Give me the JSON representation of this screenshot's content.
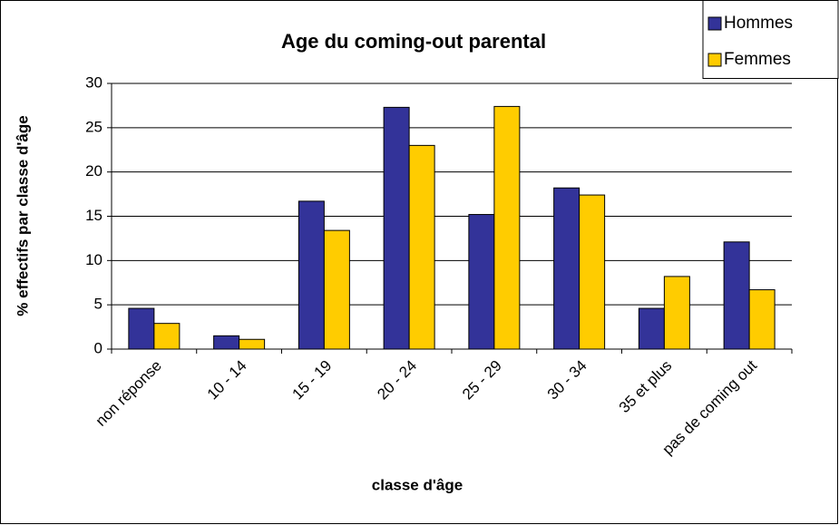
{
  "chart_data": {
    "type": "bar",
    "title": "Age du coming-out parental",
    "x_label": "classe d'âge",
    "y_label": "% effectifs par classe d'âge",
    "categories": [
      "non réponse",
      "10 - 14",
      "15 - 19",
      "20 - 24",
      "25 - 29",
      "30 - 34",
      "35 et plus",
      "pas de coming out"
    ],
    "series": [
      {
        "name": "Hommes",
        "color": "#333399",
        "values": [
          4.6,
          1.5,
          16.7,
          27.3,
          15.2,
          18.2,
          4.6,
          12.1
        ]
      },
      {
        "name": "Femmes",
        "color": "#ffcc00",
        "values": [
          2.9,
          1.1,
          13.4,
          23.0,
          27.4,
          17.4,
          8.2,
          6.7
        ]
      }
    ],
    "ylim": [
      0,
      30
    ],
    "yticks": [
      0,
      5,
      10,
      15,
      20,
      25,
      30
    ],
    "grid": true,
    "legend": "top-right"
  }
}
